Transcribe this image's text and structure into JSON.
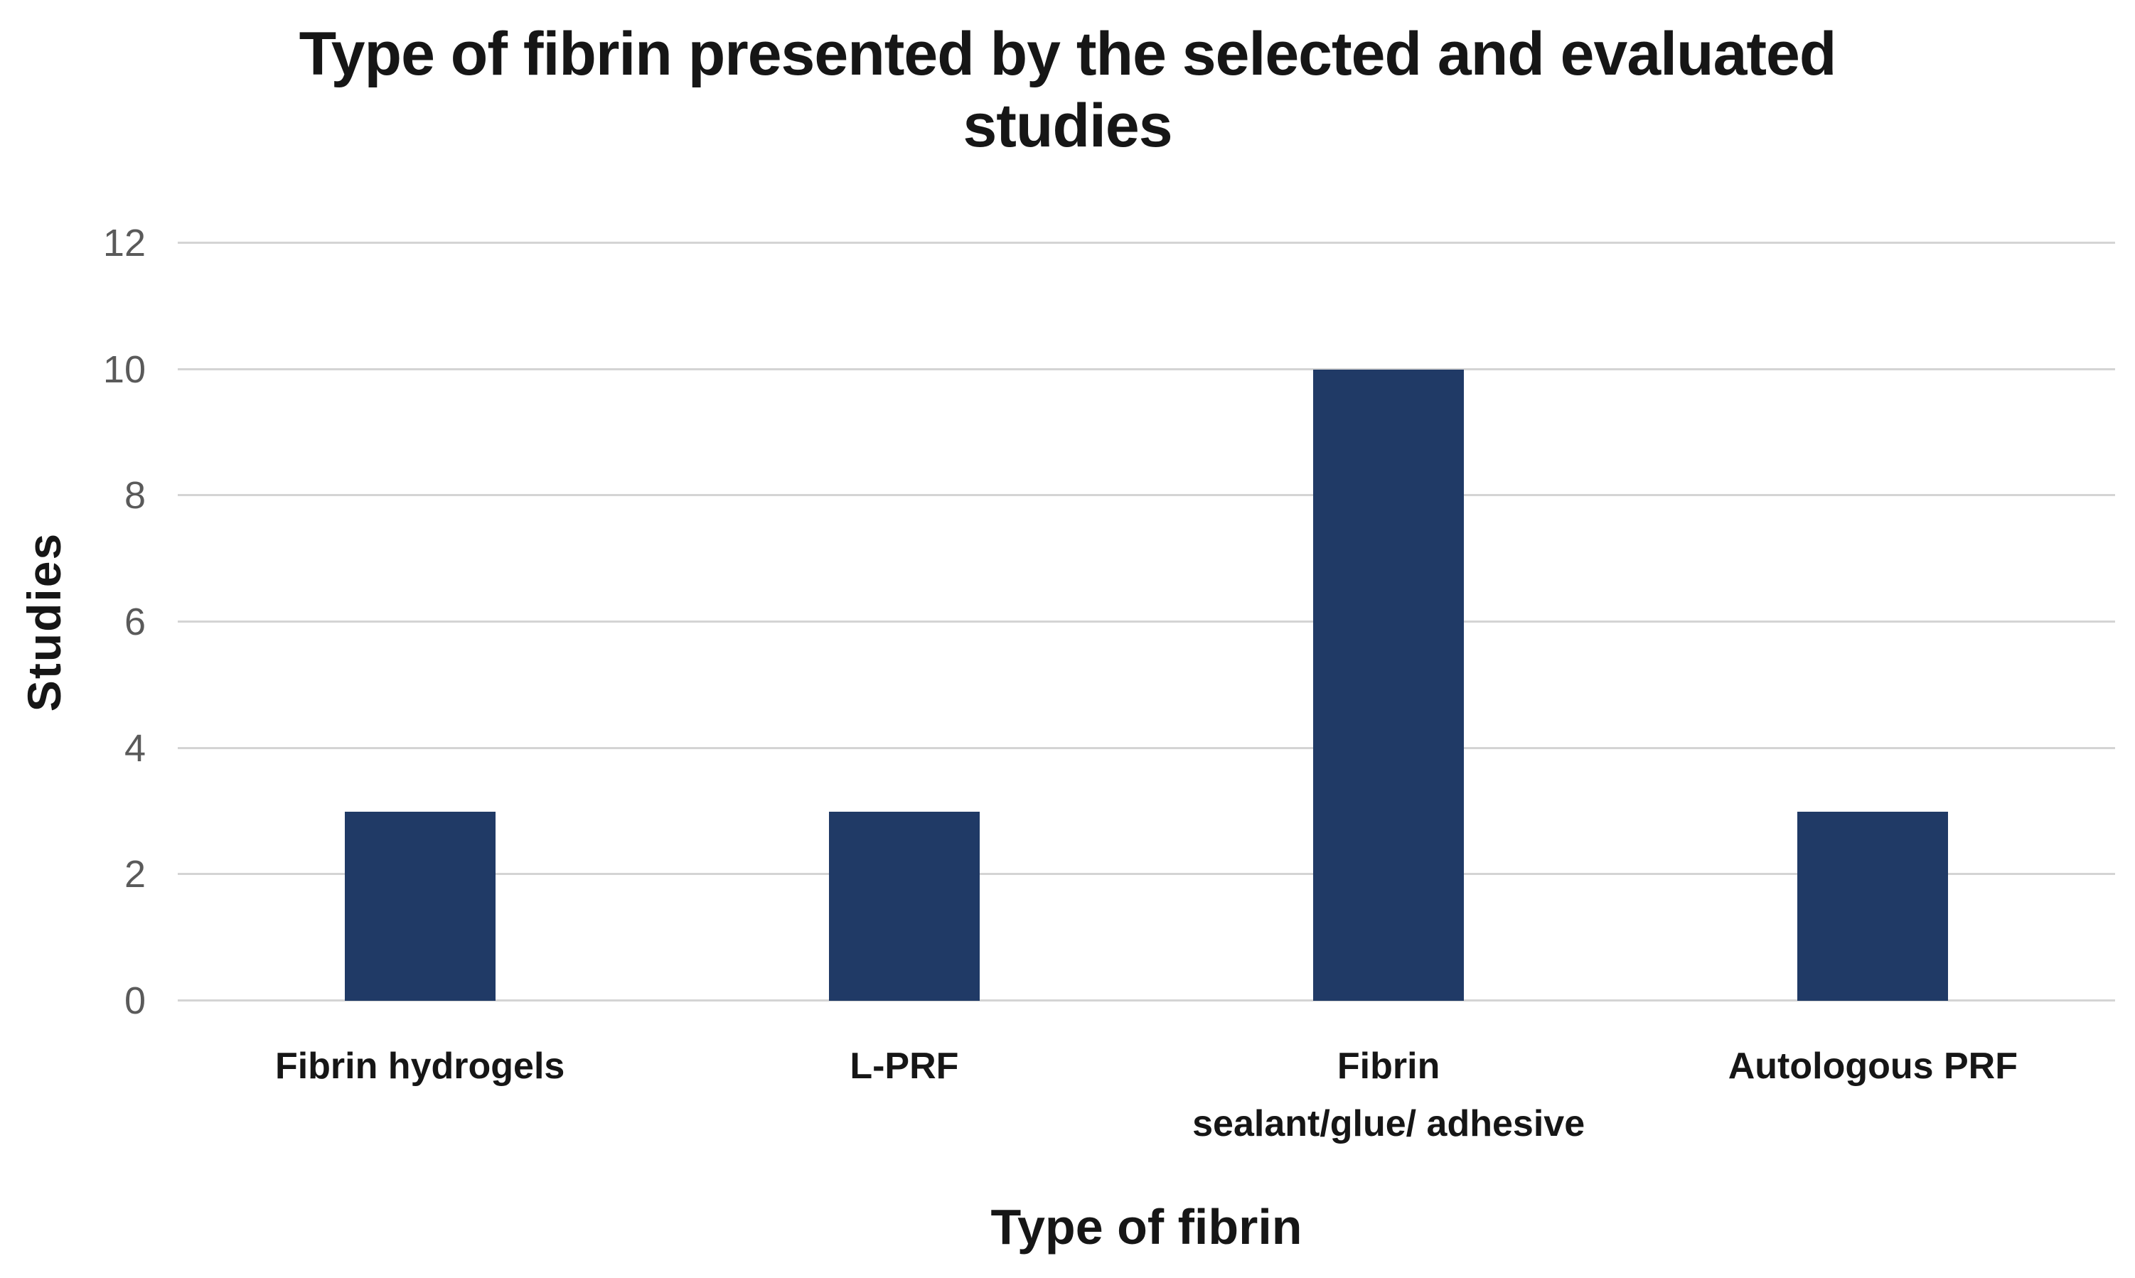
{
  "chart_data": {
    "type": "bar",
    "title": "Type of fibrin presented by the selected and evaluated studies",
    "title_lines": [
      "Type of fibrin presented by the selected and evaluated",
      "studies"
    ],
    "xlabel": "Type of fibrin",
    "ylabel": "Studies",
    "categories": [
      "Fibrin hydrogels",
      "L-PRF",
      "Fibrin sealant/glue/ adhesive",
      "Autologous PRF"
    ],
    "category_label_lines": [
      [
        "Fibrin hydrogels"
      ],
      [
        "L-PRF"
      ],
      [
        "Fibrin",
        "sealant/glue/ adhesive"
      ],
      [
        "Autologous PRF"
      ]
    ],
    "values": [
      3,
      3,
      10,
      3
    ],
    "ylim": [
      0,
      12
    ],
    "yticks": [
      0,
      2,
      4,
      6,
      8,
      10,
      12
    ],
    "grid": true,
    "legend_position": "none",
    "colors": {
      "bar": "#203a66",
      "gridline": "#d4d4d4",
      "tick_label": "#5a5a5a",
      "axis_text": "#161616",
      "background": "#ffffff"
    }
  }
}
